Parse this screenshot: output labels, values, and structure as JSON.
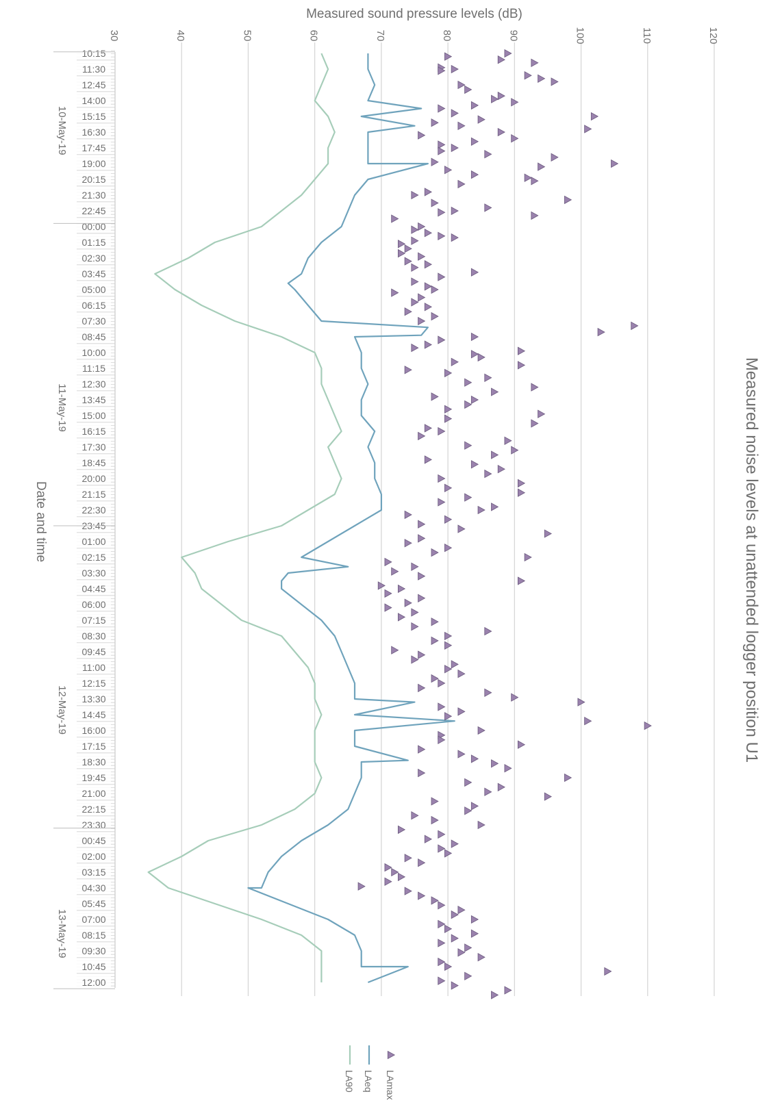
{
  "chart_data": {
    "type": "line",
    "orientation": "rotated-90-clockwise",
    "title": "Measured noise levels at unattended logger position U1",
    "ylabel": "Measured sound pressure levels (dB)",
    "xlabel": "Date and time",
    "ylim": [
      30,
      120
    ],
    "yticks": [
      30,
      40,
      50,
      60,
      70,
      80,
      90,
      100,
      110,
      120
    ],
    "grid": true,
    "legend_position": "bottom",
    "time_labels": [
      "10:15",
      "11:30",
      "12:45",
      "14:00",
      "15:15",
      "16:30",
      "17:45",
      "19:00",
      "20:15",
      "21:30",
      "22:45",
      "00:00",
      "01:15",
      "02:30",
      "03:45",
      "05:00",
      "06:15",
      "07:30",
      "08:45",
      "10:00",
      "11:15",
      "12:30",
      "13:45",
      "15:00",
      "16:15",
      "17:30",
      "18:45",
      "20:00",
      "21:15",
      "22:30",
      "23:45",
      "01:00",
      "02:15",
      "03:30",
      "04:45",
      "06:00",
      "07:15",
      "08:30",
      "09:45",
      "11:00",
      "12:15",
      "13:30",
      "14:45",
      "16:00",
      "17:15",
      "18:30",
      "19:45",
      "21:00",
      "22:15",
      "23:30",
      "00:45",
      "02:00",
      "03:15",
      "04:30",
      "05:45",
      "07:00",
      "08:15",
      "09:30",
      "10:45",
      "12:00"
    ],
    "date_labels": [
      {
        "label": "10-May-19",
        "center": 4.9
      },
      {
        "label": "11-May-19",
        "center": 22.5
      },
      {
        "label": "12-May-19",
        "center": 41.7
      },
      {
        "label": "13-May-19",
        "center": 55.9
      }
    ],
    "day_boundaries": [
      10.8,
      30.0,
      49.2
    ],
    "series": [
      {
        "name": "LA90",
        "color": "#a6cdb9",
        "kind": "line",
        "x": [
          0,
          1,
          2,
          3,
          4,
          5,
          6,
          7,
          8,
          9,
          10,
          11,
          12,
          13,
          14,
          15,
          16,
          17,
          18,
          19,
          20,
          21,
          22,
          23,
          24,
          25,
          26,
          27,
          28,
          29,
          30,
          31,
          32,
          33,
          34,
          35,
          36,
          37,
          38,
          39,
          40,
          41,
          42,
          43,
          44,
          45,
          46,
          47,
          48,
          49,
          50,
          51,
          52,
          53,
          54,
          55,
          56,
          57,
          58,
          59
        ],
        "values": [
          61,
          62,
          61,
          60,
          62,
          63,
          62,
          62,
          60,
          58,
          55,
          52,
          45,
          41,
          36,
          39,
          43,
          48,
          55,
          60,
          61,
          61,
          62,
          63,
          64,
          62,
          63,
          64,
          63,
          59,
          55,
          47,
          40,
          42,
          43,
          46,
          49,
          55,
          57,
          59,
          60,
          60,
          61,
          60,
          60,
          60,
          61,
          60,
          57,
          52,
          44,
          40,
          35,
          38,
          45,
          52,
          58,
          61,
          61,
          61
        ]
      },
      {
        "name": "LAeq",
        "color": "#6fa3bc",
        "kind": "line",
        "x": [
          0,
          1,
          2,
          3,
          4,
          5,
          6,
          7,
          8,
          9,
          10,
          11,
          12,
          13,
          14,
          15,
          16,
          17,
          18,
          19,
          20,
          21,
          22,
          23,
          24,
          25,
          26,
          27,
          28,
          29,
          30,
          31,
          32,
          33,
          34,
          35,
          36,
          37,
          38,
          39,
          40,
          41,
          42,
          43,
          44,
          45,
          46,
          47,
          48,
          49,
          50,
          51,
          52,
          53,
          54,
          55,
          56,
          57,
          58,
          59
        ],
        "values": [
          68,
          68,
          69,
          68,
          67,
          68,
          68,
          68,
          68,
          66,
          65,
          64,
          61,
          59,
          58,
          57,
          59,
          61,
          66,
          67,
          67,
          68,
          67,
          67,
          69,
          68,
          69,
          69,
          70,
          70,
          66,
          62,
          58,
          56,
          55,
          58,
          61,
          63,
          64,
          65,
          66,
          66,
          66,
          66,
          66,
          67,
          67,
          66,
          65,
          62,
          58,
          55,
          53,
          52,
          56,
          62,
          66,
          67,
          67,
          68
        ],
        "spikes": [
          {
            "x": 3.5,
            "value": 76
          },
          {
            "x": 4.6,
            "value": 75
          },
          {
            "x": 7.0,
            "value": 77
          },
          {
            "x": 17.4,
            "value": 77
          },
          {
            "x": 17.9,
            "value": 76
          },
          {
            "x": 14.6,
            "value": 56
          },
          {
            "x": 32.6,
            "value": 65
          },
          {
            "x": 33.5,
            "value": 55
          },
          {
            "x": 41.2,
            "value": 75
          },
          {
            "x": 42.4,
            "value": 81
          },
          {
            "x": 44.9,
            "value": 74
          },
          {
            "x": 53.0,
            "value": 50
          },
          {
            "x": 58.0,
            "value": 74
          }
        ]
      },
      {
        "name": "LAmax",
        "color": "#9a82ad",
        "kind": "scatter",
        "points": [
          [
            0.2,
            80
          ],
          [
            0.0,
            89
          ],
          [
            0.4,
            88
          ],
          [
            0.6,
            93
          ],
          [
            0.9,
            79
          ],
          [
            1.0,
            81
          ],
          [
            1.1,
            79
          ],
          [
            1.4,
            92
          ],
          [
            1.6,
            94
          ],
          [
            1.8,
            96
          ],
          [
            2.0,
            82
          ],
          [
            2.3,
            83
          ],
          [
            2.7,
            88
          ],
          [
            2.9,
            87
          ],
          [
            3.1,
            90
          ],
          [
            3.3,
            84
          ],
          [
            3.5,
            79
          ],
          [
            3.8,
            81
          ],
          [
            4.0,
            102
          ],
          [
            4.2,
            85
          ],
          [
            4.4,
            78
          ],
          [
            4.6,
            82
          ],
          [
            4.8,
            101
          ],
          [
            5.0,
            88
          ],
          [
            5.2,
            76
          ],
          [
            5.4,
            90
          ],
          [
            5.6,
            84
          ],
          [
            5.8,
            79
          ],
          [
            6.0,
            81
          ],
          [
            6.2,
            79
          ],
          [
            6.4,
            86
          ],
          [
            6.6,
            96
          ],
          [
            6.9,
            78
          ],
          [
            7.0,
            105
          ],
          [
            7.2,
            94
          ],
          [
            7.4,
            80
          ],
          [
            7.7,
            84
          ],
          [
            7.9,
            92
          ],
          [
            8.1,
            93
          ],
          [
            8.3,
            82
          ],
          [
            8.8,
            77
          ],
          [
            9.0,
            75
          ],
          [
            9.3,
            98
          ],
          [
            9.5,
            78
          ],
          [
            9.8,
            86
          ],
          [
            10.0,
            81
          ],
          [
            10.1,
            79
          ],
          [
            10.3,
            93
          ],
          [
            10.5,
            72
          ],
          [
            11.0,
            76
          ],
          [
            11.2,
            75
          ],
          [
            11.4,
            77
          ],
          [
            11.6,
            79
          ],
          [
            11.7,
            81
          ],
          [
            11.9,
            75
          ],
          [
            12.1,
            73
          ],
          [
            12.4,
            74
          ],
          [
            12.7,
            73
          ],
          [
            12.9,
            76
          ],
          [
            13.2,
            74
          ],
          [
            13.4,
            77
          ],
          [
            13.6,
            75
          ],
          [
            13.9,
            84
          ],
          [
            14.2,
            79
          ],
          [
            14.5,
            75
          ],
          [
            14.8,
            77
          ],
          [
            15.0,
            78
          ],
          [
            15.2,
            72
          ],
          [
            15.5,
            76
          ],
          [
            15.8,
            75
          ],
          [
            16.1,
            77
          ],
          [
            16.4,
            74
          ],
          [
            16.7,
            78
          ],
          [
            17.0,
            76
          ],
          [
            17.3,
            108
          ],
          [
            17.7,
            103
          ],
          [
            18.0,
            84
          ],
          [
            18.2,
            79
          ],
          [
            18.5,
            77
          ],
          [
            18.7,
            75
          ],
          [
            18.9,
            91
          ],
          [
            19.1,
            84
          ],
          [
            19.3,
            85
          ],
          [
            19.6,
            81
          ],
          [
            19.8,
            91
          ],
          [
            20.1,
            74
          ],
          [
            20.3,
            80
          ],
          [
            20.6,
            86
          ],
          [
            20.9,
            83
          ],
          [
            21.2,
            93
          ],
          [
            21.5,
            87
          ],
          [
            21.8,
            78
          ],
          [
            22.0,
            84
          ],
          [
            22.3,
            83
          ],
          [
            22.6,
            80
          ],
          [
            22.9,
            94
          ],
          [
            23.2,
            80
          ],
          [
            23.5,
            93
          ],
          [
            23.8,
            77
          ],
          [
            24.0,
            79
          ],
          [
            24.3,
            76
          ],
          [
            24.6,
            89
          ],
          [
            24.9,
            83
          ],
          [
            25.2,
            90
          ],
          [
            25.5,
            87
          ],
          [
            25.8,
            77
          ],
          [
            26.1,
            84
          ],
          [
            26.4,
            88
          ],
          [
            26.7,
            86
          ],
          [
            27.0,
            79
          ],
          [
            27.3,
            91
          ],
          [
            27.6,
            80
          ],
          [
            27.9,
            91
          ],
          [
            28.2,
            83
          ],
          [
            28.5,
            79
          ],
          [
            28.8,
            87
          ],
          [
            29.0,
            85
          ],
          [
            29.3,
            74
          ],
          [
            29.6,
            80
          ],
          [
            29.9,
            76
          ],
          [
            30.2,
            82
          ],
          [
            30.5,
            95
          ],
          [
            30.8,
            76
          ],
          [
            31.1,
            74
          ],
          [
            31.4,
            80
          ],
          [
            31.7,
            78
          ],
          [
            32.0,
            92
          ],
          [
            32.3,
            71
          ],
          [
            32.6,
            75
          ],
          [
            32.9,
            72
          ],
          [
            33.2,
            76
          ],
          [
            33.5,
            91
          ],
          [
            33.8,
            70
          ],
          [
            34.0,
            73
          ],
          [
            34.3,
            71
          ],
          [
            34.6,
            76
          ],
          [
            34.9,
            74
          ],
          [
            35.2,
            71
          ],
          [
            35.5,
            75
          ],
          [
            35.8,
            73
          ],
          [
            36.1,
            78
          ],
          [
            36.4,
            75
          ],
          [
            36.7,
            86
          ],
          [
            37.0,
            80
          ],
          [
            37.3,
            78
          ],
          [
            37.6,
            80
          ],
          [
            37.9,
            72
          ],
          [
            38.2,
            76
          ],
          [
            38.5,
            75
          ],
          [
            38.8,
            81
          ],
          [
            39.1,
            80
          ],
          [
            39.4,
            82
          ],
          [
            39.7,
            78
          ],
          [
            40.0,
            79
          ],
          [
            40.3,
            76
          ],
          [
            40.6,
            86
          ],
          [
            40.9,
            90
          ],
          [
            41.2,
            100
          ],
          [
            41.5,
            79
          ],
          [
            41.8,
            82
          ],
          [
            42.1,
            80
          ],
          [
            42.4,
            101
          ],
          [
            42.7,
            110
          ],
          [
            43.0,
            85
          ],
          [
            43.3,
            79
          ],
          [
            43.6,
            79
          ],
          [
            43.9,
            91
          ],
          [
            44.2,
            76
          ],
          [
            44.5,
            82
          ],
          [
            44.8,
            84
          ],
          [
            45.1,
            87
          ],
          [
            45.4,
            89
          ],
          [
            45.7,
            76
          ],
          [
            46.0,
            98
          ],
          [
            46.3,
            83
          ],
          [
            46.6,
            88
          ],
          [
            46.9,
            86
          ],
          [
            47.2,
            95
          ],
          [
            47.5,
            78
          ],
          [
            47.8,
            84
          ],
          [
            48.1,
            83
          ],
          [
            48.4,
            75
          ],
          [
            48.7,
            78
          ],
          [
            49.0,
            85
          ],
          [
            49.3,
            73
          ],
          [
            49.6,
            79
          ],
          [
            49.9,
            77
          ],
          [
            50.2,
            81
          ],
          [
            50.5,
            79
          ],
          [
            50.8,
            80
          ],
          [
            51.1,
            74
          ],
          [
            51.4,
            76
          ],
          [
            51.7,
            71
          ],
          [
            52.0,
            72
          ],
          [
            52.3,
            73
          ],
          [
            52.6,
            71
          ],
          [
            52.9,
            67
          ],
          [
            53.2,
            74
          ],
          [
            53.5,
            76
          ],
          [
            53.8,
            78
          ],
          [
            54.1,
            79
          ],
          [
            54.4,
            82
          ],
          [
            54.7,
            81
          ],
          [
            55.0,
            84
          ],
          [
            55.3,
            79
          ],
          [
            55.6,
            80
          ],
          [
            55.9,
            84
          ],
          [
            56.2,
            81
          ],
          [
            56.5,
            79
          ],
          [
            56.8,
            83
          ],
          [
            57.1,
            82
          ],
          [
            57.4,
            85
          ],
          [
            57.7,
            79
          ],
          [
            58.0,
            80
          ],
          [
            58.3,
            104
          ],
          [
            58.6,
            83
          ],
          [
            58.9,
            79
          ],
          [
            59.2,
            81
          ],
          [
            59.5,
            89
          ],
          [
            59.8,
            87
          ]
        ]
      }
    ]
  }
}
